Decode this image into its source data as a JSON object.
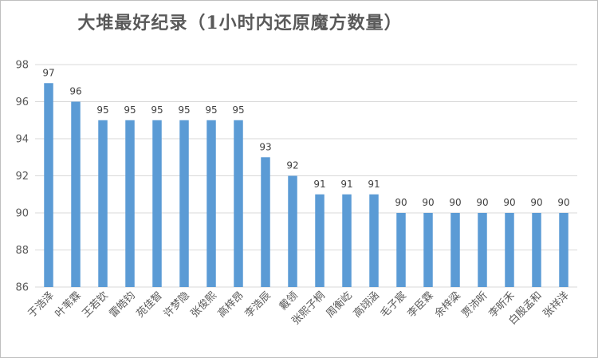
{
  "chart_data": {
    "type": "bar",
    "title": "大堆最好纪录（1小时内还原魔方数量）",
    "categories": [
      "于浩泽",
      "叶苇霖",
      "王若钦",
      "雷皓钧",
      "苑佳智",
      "许梦隐",
      "张俊熙",
      "高梓昂",
      "李浩辰",
      "戴领",
      "张熙子桐",
      "周衡屹",
      "高翊涵",
      "毛子宸",
      "李臣霖",
      "余梓粱",
      "贾沛昕",
      "李昕禾",
      "白殷孟和",
      "张祥洋"
    ],
    "values": [
      97,
      96,
      95,
      95,
      95,
      95,
      95,
      95,
      93,
      92,
      91,
      91,
      91,
      90,
      90,
      90,
      90,
      90,
      90,
      90
    ],
    "yticks": [
      86,
      88,
      90,
      92,
      94,
      96,
      98
    ],
    "ylim": [
      86,
      98
    ],
    "bar_color": "#5b9bd5",
    "grid": true,
    "legend": "none"
  }
}
